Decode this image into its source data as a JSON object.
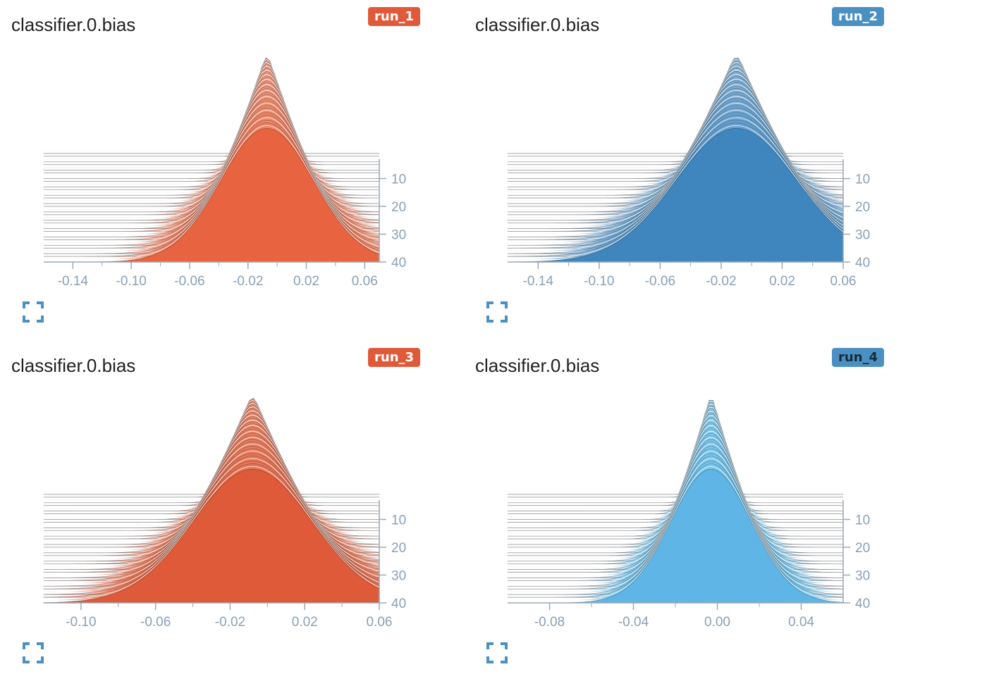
{
  "cards": [
    {
      "title": "classifier.0.bias",
      "run": "run_1",
      "tag_bg": "#e05a3a",
      "tag_fg": "#ffffff",
      "base_color": "#e8633f",
      "light_color": "#f5b09a",
      "x_ticks": [
        "-0.14",
        "-0.10",
        "-0.06",
        "-0.02",
        "0.02",
        "0.06"
      ],
      "y_ticks": [
        "10",
        "20",
        "30",
        "40"
      ]
    },
    {
      "title": "classifier.0.bias",
      "run": "run_2",
      "tag_bg": "#4a90c2",
      "tag_fg": "#ffffff",
      "base_color": "#3f86bf",
      "light_color": "#9cc6e4",
      "x_ticks": [
        "-0.14",
        "-0.10",
        "-0.06",
        "-0.02",
        "0.02",
        "0.06"
      ],
      "y_ticks": [
        "10",
        "20",
        "30",
        "40"
      ]
    },
    {
      "title": "classifier.0.bias",
      "run": "run_3",
      "tag_bg": "#e05a3a",
      "tag_fg": "#ffffff",
      "base_color": "#df5a38",
      "light_color": "#f19a80",
      "x_ticks": [
        "-0.10",
        "-0.06",
        "-0.02",
        "0.02",
        "0.06"
      ],
      "y_ticks": [
        "10",
        "20",
        "30",
        "40"
      ]
    },
    {
      "title": "classifier.0.bias",
      "run": "run_4",
      "tag_bg": "#4a90c2",
      "tag_fg": "#1a2a3a",
      "base_color": "#5fb6e6",
      "light_color": "#9ad9f5",
      "x_ticks": [
        "-0.08",
        "-0.04",
        "0.00",
        "0.04"
      ],
      "y_ticks": [
        "10",
        "20",
        "30",
        "40"
      ]
    }
  ],
  "chart_data": [
    {
      "type": "area",
      "title": "classifier.0.bias",
      "series": [
        {
          "name": "run_1"
        }
      ],
      "x_ticks": [
        -0.14,
        -0.1,
        -0.06,
        -0.02,
        0.02,
        0.06
      ],
      "xlim": [
        -0.16,
        0.07
      ],
      "y_ticks": [
        10,
        20,
        30,
        40
      ],
      "ylim": [
        0,
        40
      ],
      "peak_x": -0.007,
      "spread": 0.02
    },
    {
      "type": "area",
      "title": "classifier.0.bias",
      "series": [
        {
          "name": "run_2"
        }
      ],
      "x_ticks": [
        -0.14,
        -0.1,
        -0.06,
        -0.02,
        0.02,
        0.06
      ],
      "xlim": [
        -0.16,
        0.06
      ],
      "y_ticks": [
        10,
        20,
        30,
        40
      ],
      "ylim": [
        0,
        40
      ],
      "peak_x": -0.01,
      "spread": 0.025
    },
    {
      "type": "area",
      "title": "classifier.0.bias",
      "series": [
        {
          "name": "run_3"
        }
      ],
      "x_ticks": [
        -0.1,
        -0.06,
        -0.02,
        0.02,
        0.06
      ],
      "xlim": [
        -0.12,
        0.06
      ],
      "y_ticks": [
        10,
        20,
        30,
        40
      ],
      "ylim": [
        0,
        40
      ],
      "peak_x": -0.008,
      "spread": 0.02
    },
    {
      "type": "area",
      "title": "classifier.0.bias",
      "series": [
        {
          "name": "run_4"
        }
      ],
      "x_ticks": [
        -0.08,
        -0.04,
        0.0,
        0.04
      ],
      "xlim": [
        -0.1,
        0.06
      ],
      "y_ticks": [
        10,
        20,
        30,
        40
      ],
      "ylim": [
        0,
        40
      ],
      "peak_x": -0.003,
      "spread": 0.012
    }
  ]
}
